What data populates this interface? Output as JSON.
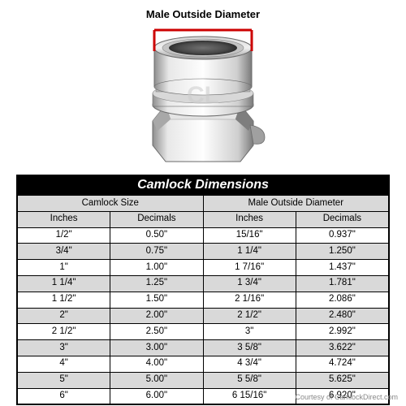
{
  "diagram": {
    "label": "Male Outside Diameter",
    "indicator_color": "#cc0000",
    "metal_light": "#e6e6e6",
    "metal_mid": "#bdbdbd",
    "metal_dark": "#8f8f8f",
    "metal_shadow": "#5a5a5a"
  },
  "table": {
    "title": "Camlock Dimensions",
    "group_headers": [
      "Camlock Size",
      "Male Outside Diameter"
    ],
    "sub_headers": [
      "Inches",
      "Decimals",
      "Inches",
      "Decimals"
    ],
    "rows": [
      [
        "1/2\"",
        "0.50\"",
        "15/16\"",
        "0.937\""
      ],
      [
        "3/4\"",
        "0.75\"",
        "1 1/4\"",
        "1.250\""
      ],
      [
        "1\"",
        "1.00\"",
        "1 7/16\"",
        "1.437\""
      ],
      [
        "1 1/4\"",
        "1.25\"",
        "1 3/4\"",
        "1.781\""
      ],
      [
        "1 1/2\"",
        "1.50\"",
        "2 1/16\"",
        "2.086\""
      ],
      [
        "2\"",
        "2.00\"",
        "2 1/2\"",
        "2.480\""
      ],
      [
        "2 1/2\"",
        "2.50\"",
        "3\"",
        "2.992\""
      ],
      [
        "3\"",
        "3.00\"",
        "3 5/8\"",
        "3.622\""
      ],
      [
        "4\"",
        "4.00\"",
        "4 3/4\"",
        "4.724\""
      ],
      [
        "5\"",
        "5.00\"",
        "5 5/8\"",
        "5.625\""
      ],
      [
        "6\"",
        "6.00\"",
        "6 15/16\"",
        "6.920\""
      ]
    ],
    "header_bg": "#d9d9d9",
    "stripe_bg": "#d9d9d9",
    "border_color": "#000000",
    "title_bg": "#000000",
    "title_color": "#ffffff"
  },
  "credit": "Courtesy of CamlockDirect.com"
}
